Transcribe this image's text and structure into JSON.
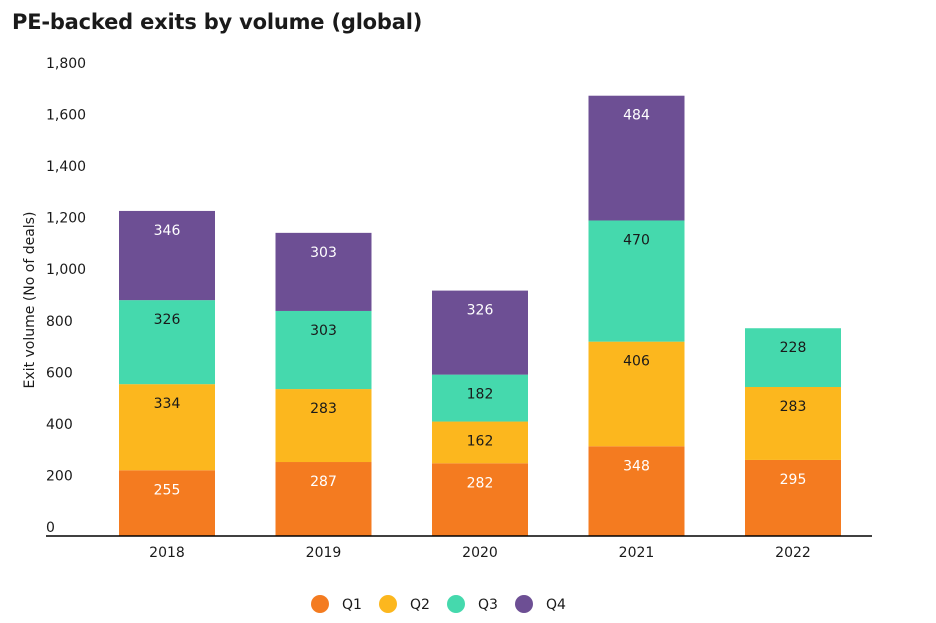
{
  "chart_data": {
    "type": "bar",
    "stacked": true,
    "title": "PE-backed exits by volume (global)",
    "ylabel": "Exit volume (No of deals)",
    "xlabel": "",
    "categories": [
      "2018",
      "2019",
      "2020",
      "2021",
      "2022"
    ],
    "ylim": [
      0,
      1800
    ],
    "yticks": [
      0,
      200,
      400,
      600,
      800,
      1000,
      1200,
      1400,
      1600,
      1800
    ],
    "ytick_labels": [
      "0",
      "200",
      "400",
      "600",
      "800",
      "1,000",
      "1,200",
      "1,400",
      "1,600",
      "1,800"
    ],
    "grid": false,
    "legend_position": "bottom",
    "series": [
      {
        "name": "Q1",
        "color": "#f47b20",
        "label_color": "#ffffff",
        "values": [
          255,
          287,
          282,
          348,
          295
        ]
      },
      {
        "name": "Q2",
        "color": "#fcb71e",
        "label_color": "#1a1a1a",
        "values": [
          334,
          283,
          162,
          406,
          283
        ]
      },
      {
        "name": "Q3",
        "color": "#45d9ad",
        "label_color": "#1a1a1a",
        "values": [
          326,
          303,
          182,
          470,
          228
        ]
      },
      {
        "name": "Q4",
        "color": "#6d4f94",
        "label_color": "#ffffff",
        "values": [
          346,
          303,
          326,
          484,
          null
        ]
      }
    ]
  }
}
